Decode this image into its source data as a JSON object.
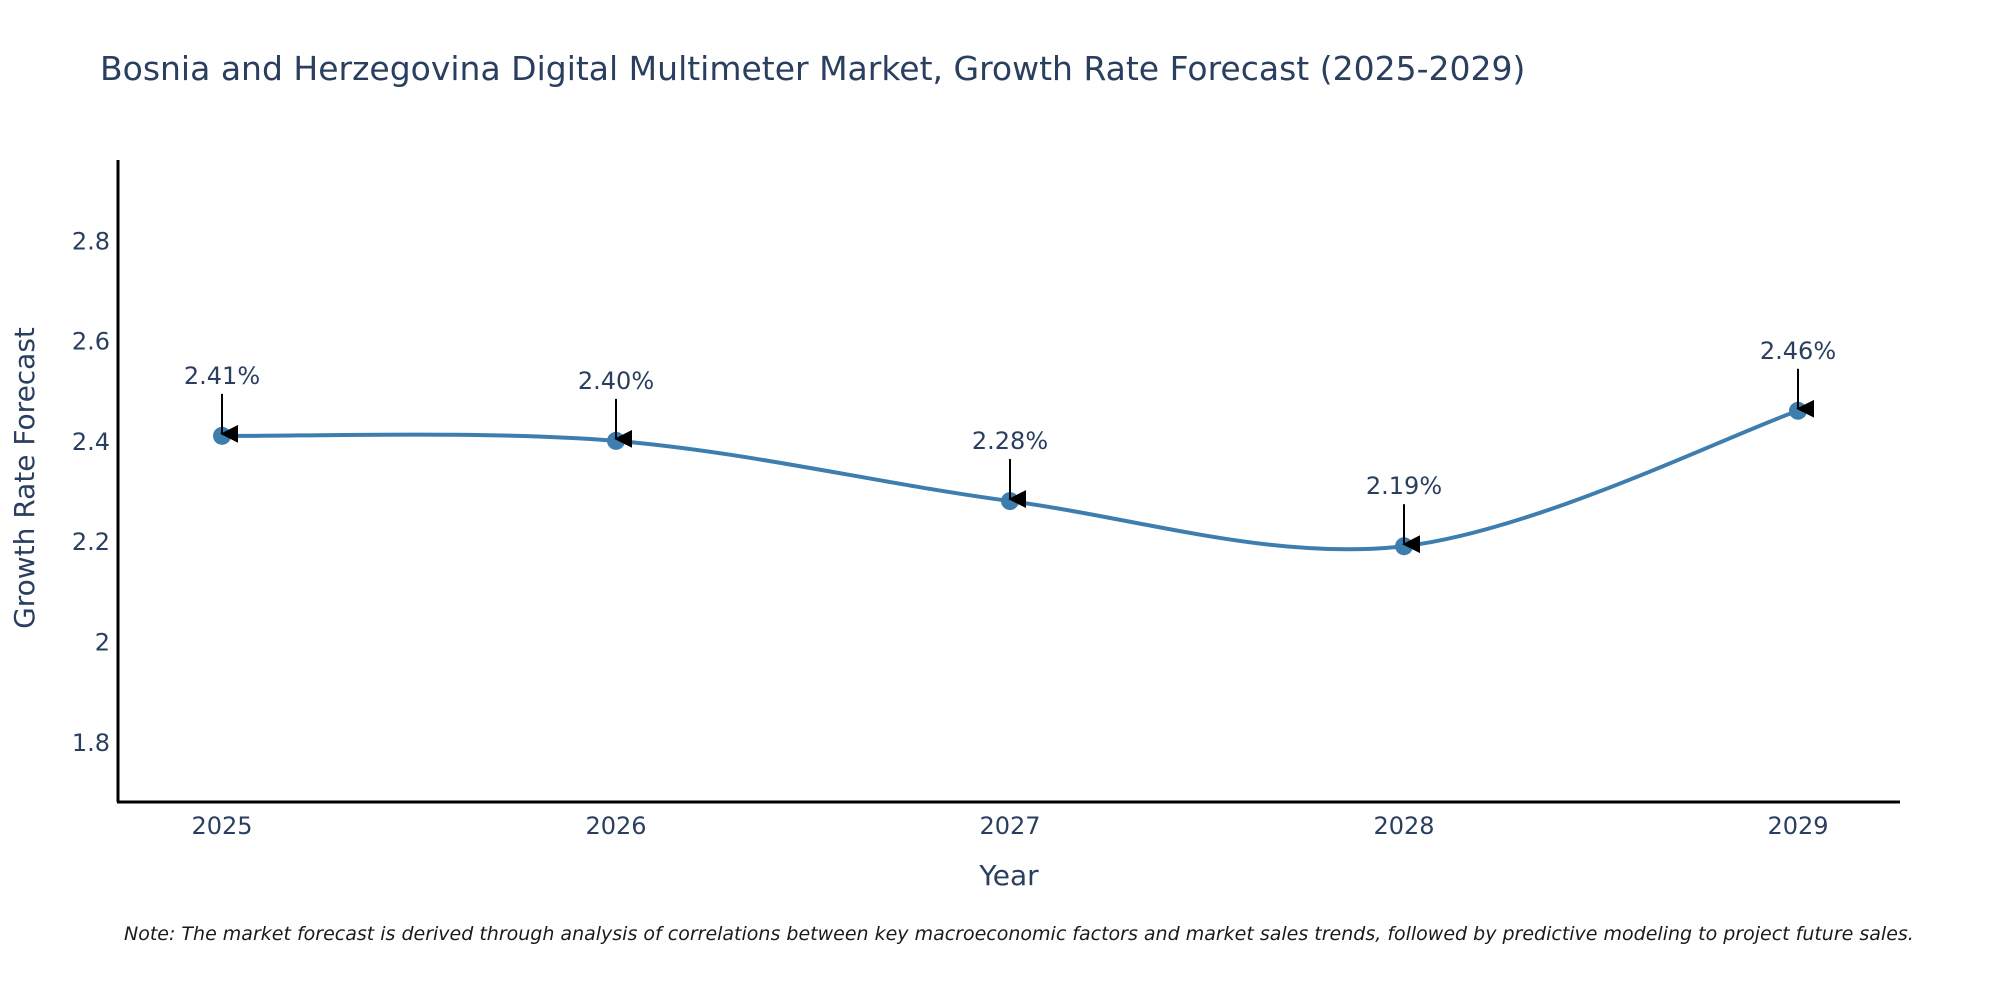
{
  "chart_data": {
    "type": "line",
    "title": "Bosnia and Herzegovina Digital Multimeter Market, Growth Rate Forecast (2025-2029)",
    "xlabel": "Year",
    "ylabel": "Growth Rate Forecast",
    "x": [
      "2025",
      "2026",
      "2027",
      "2028",
      "2029"
    ],
    "values": [
      2.41,
      2.4,
      2.28,
      2.19,
      2.46
    ],
    "data_labels": [
      "2.41%",
      "2.40%",
      "2.28%",
      "2.19%",
      "2.46%"
    ],
    "yticks": [
      1.8,
      2,
      2.2,
      2.4,
      2.6,
      2.8
    ],
    "ytick_labels": [
      "1.8",
      "2",
      "2.2",
      "2.4",
      "2.6",
      "2.8"
    ],
    "ylim": [
      1.68,
      2.96
    ],
    "grid": false,
    "line_shape": "spline",
    "note": "Note: The market forecast is derived through analysis of correlations between key macroeconomic factors and market sales trends, followed by predictive modeling to project future sales."
  },
  "colors": {
    "line": "#3d7eaf",
    "marker": "#3d7eaf",
    "text": "#2a3f5f",
    "axis": "#000000",
    "arrow": "#000000"
  }
}
